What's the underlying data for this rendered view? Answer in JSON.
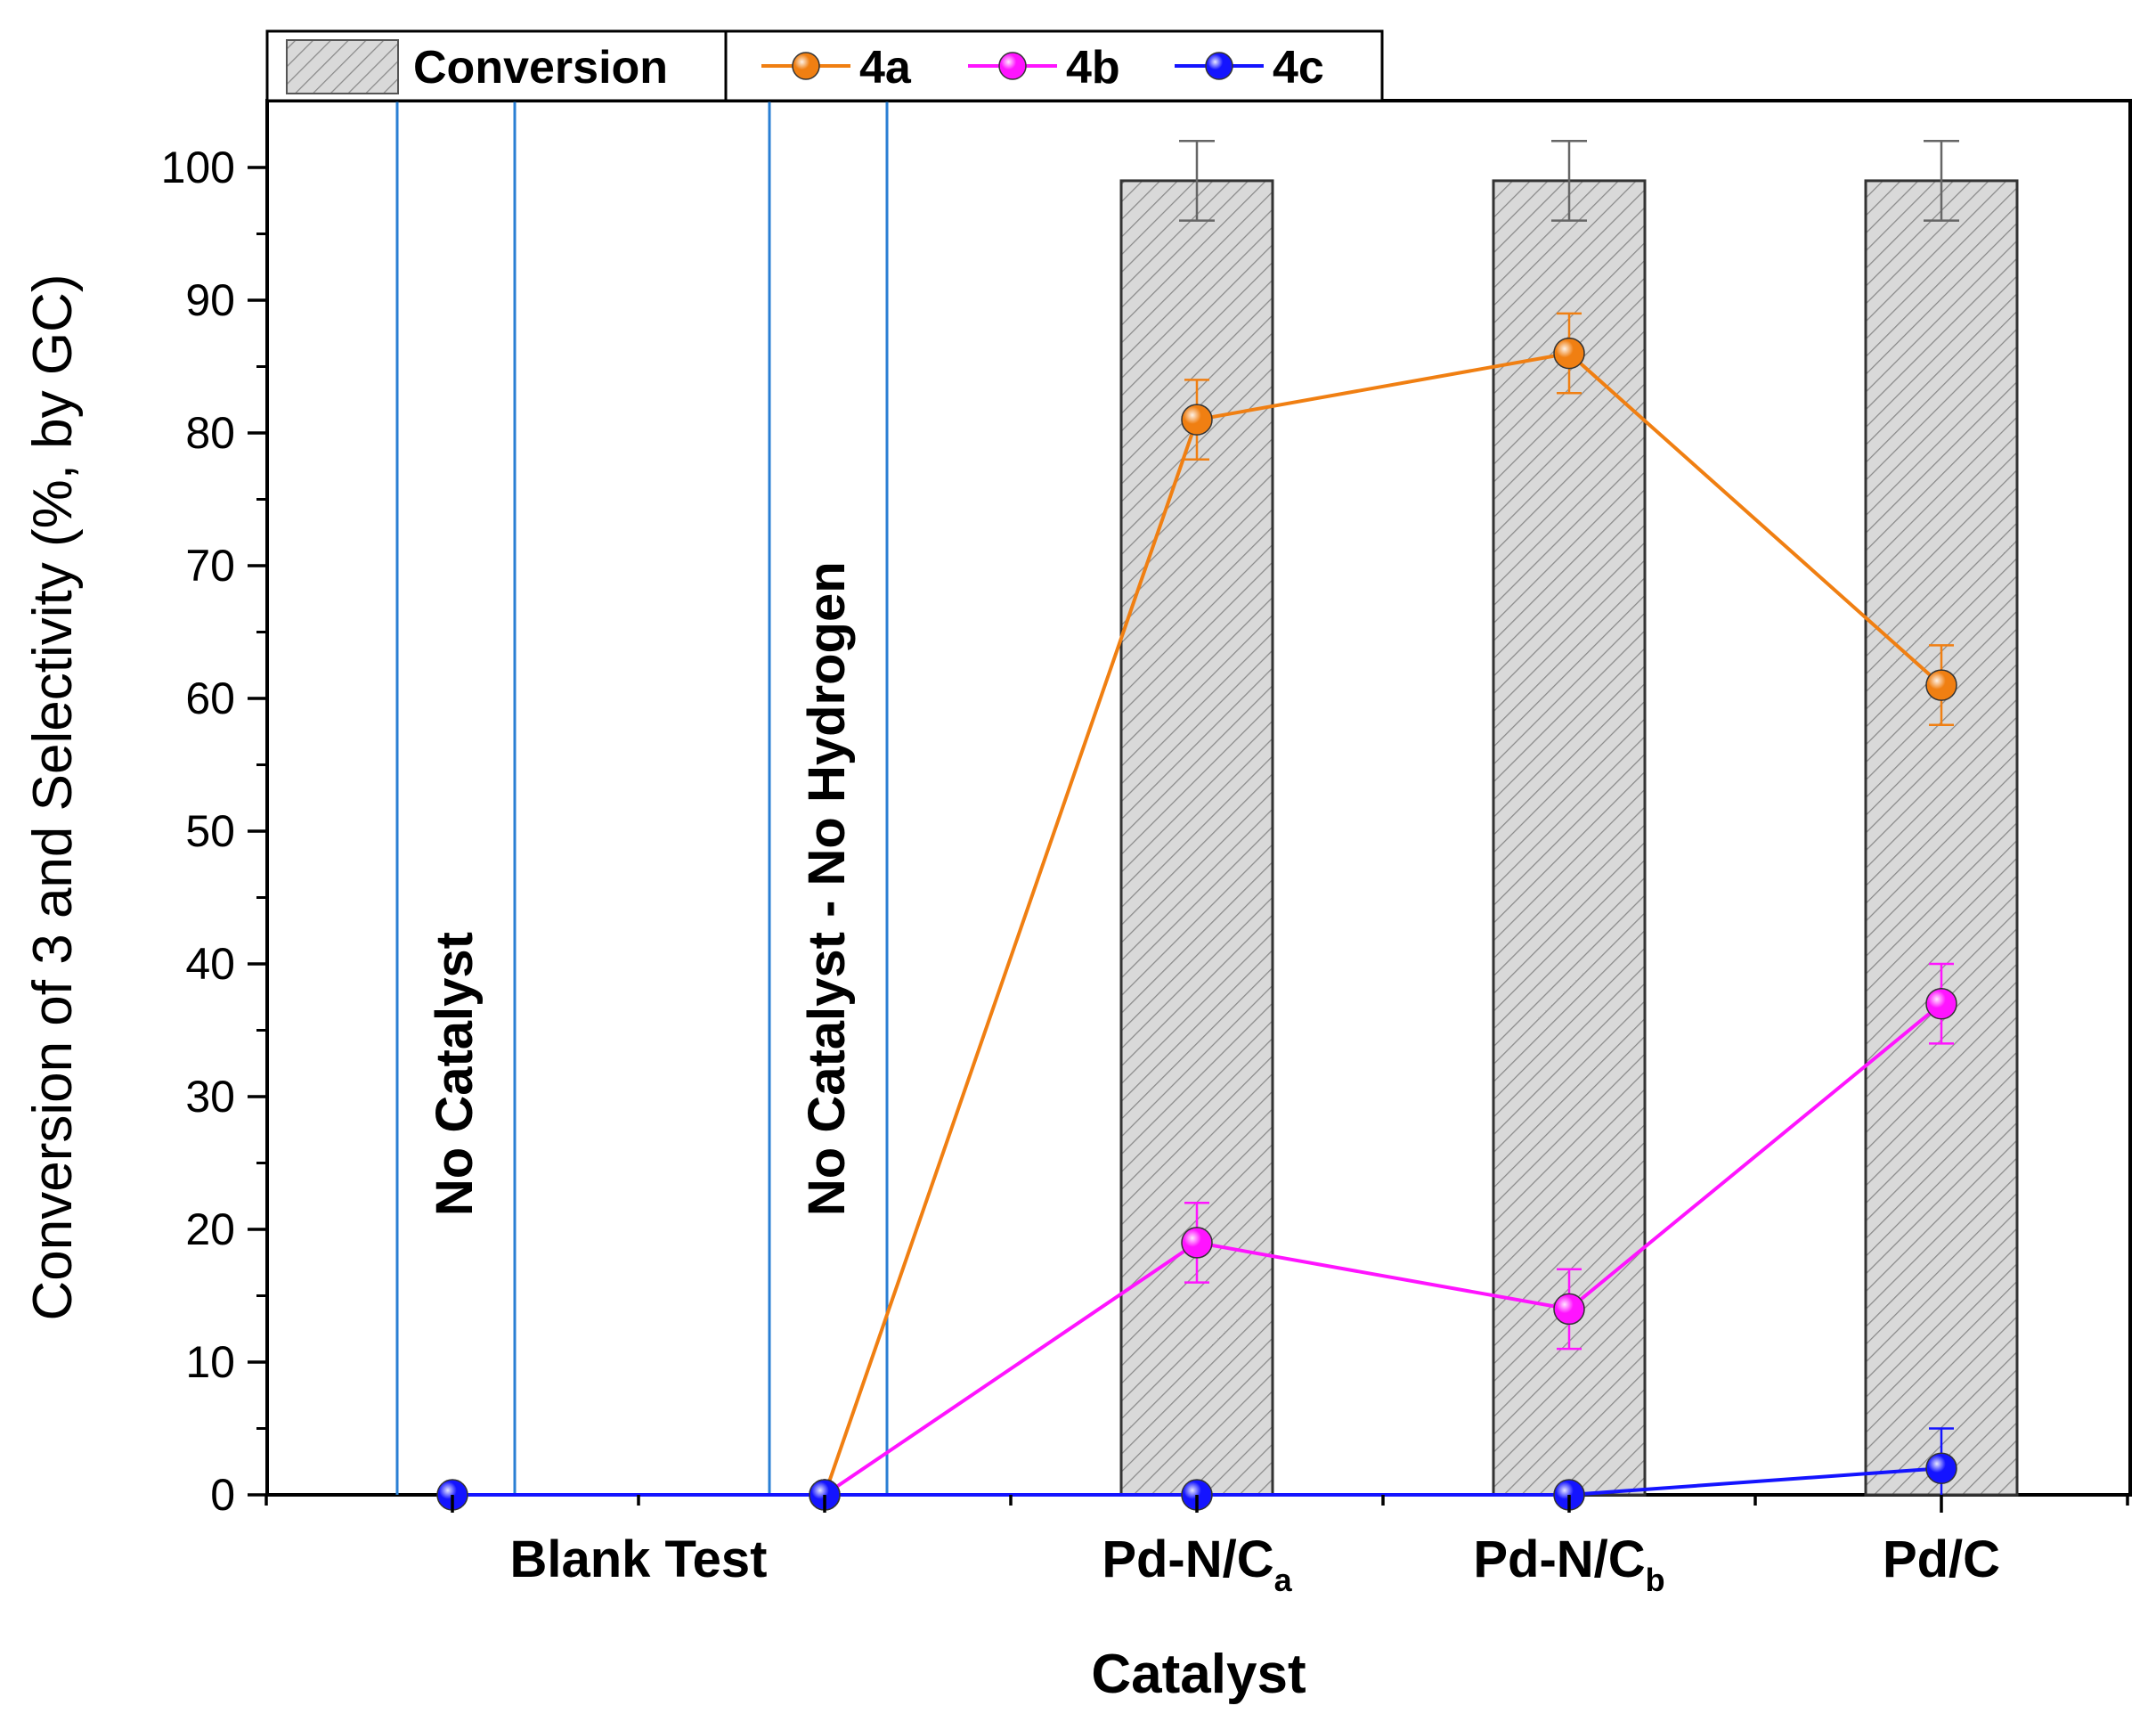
{
  "chart_data": {
    "type": "bar",
    "xlabel": "Catalyst",
    "ylabel": "Conversion of 3 and Selectivity (%, by GC)",
    "ylim": [
      0,
      100
    ],
    "yticks": [
      0,
      10,
      20,
      30,
      40,
      50,
      60,
      70,
      80,
      90,
      100
    ],
    "x_positions": [
      1,
      2,
      3,
      4,
      5
    ],
    "xlim": [
      0.5,
      5.5
    ],
    "category_labels": [
      {
        "main": "Blank Test",
        "sub": "",
        "x": 1.5
      },
      {
        "main": "Pd-N/C",
        "sub": "a",
        "x": 3
      },
      {
        "main": "Pd-N/C",
        "sub": "b",
        "x": 4
      },
      {
        "main": "Pd/C",
        "sub": "",
        "x": 5
      }
    ],
    "annotations": [
      {
        "text": "No Catalyst",
        "x": 1
      },
      {
        "text": "No Catalyst - No Hydrogen",
        "x": 2
      }
    ],
    "bars": {
      "name": "Conversion",
      "x": [
        3,
        4,
        5
      ],
      "values": [
        99,
        99,
        99
      ],
      "errors": [
        3,
        3,
        3
      ],
      "color": "#d9d9d9"
    },
    "series": [
      {
        "name": "4a",
        "color": "#f07f12",
        "x": [
          2,
          3,
          4,
          5
        ],
        "values": [
          0,
          81,
          86,
          61
        ],
        "errors": [
          0,
          3,
          3,
          3
        ]
      },
      {
        "name": "4b",
        "color": "#ff14ff",
        "x": [
          2,
          3,
          4,
          5
        ],
        "values": [
          0,
          19,
          14,
          37
        ],
        "errors": [
          0,
          3,
          3,
          3
        ]
      },
      {
        "name": "4c",
        "color": "#1414ff",
        "x": [
          1,
          2,
          3,
          4,
          5
        ],
        "values": [
          0,
          0,
          0,
          0,
          2
        ],
        "errors": [
          0,
          0,
          0,
          0,
          3
        ]
      }
    ],
    "legend": {
      "bar_label": "Conversion",
      "series_labels": [
        "4a",
        "4b",
        "4c"
      ]
    }
  }
}
